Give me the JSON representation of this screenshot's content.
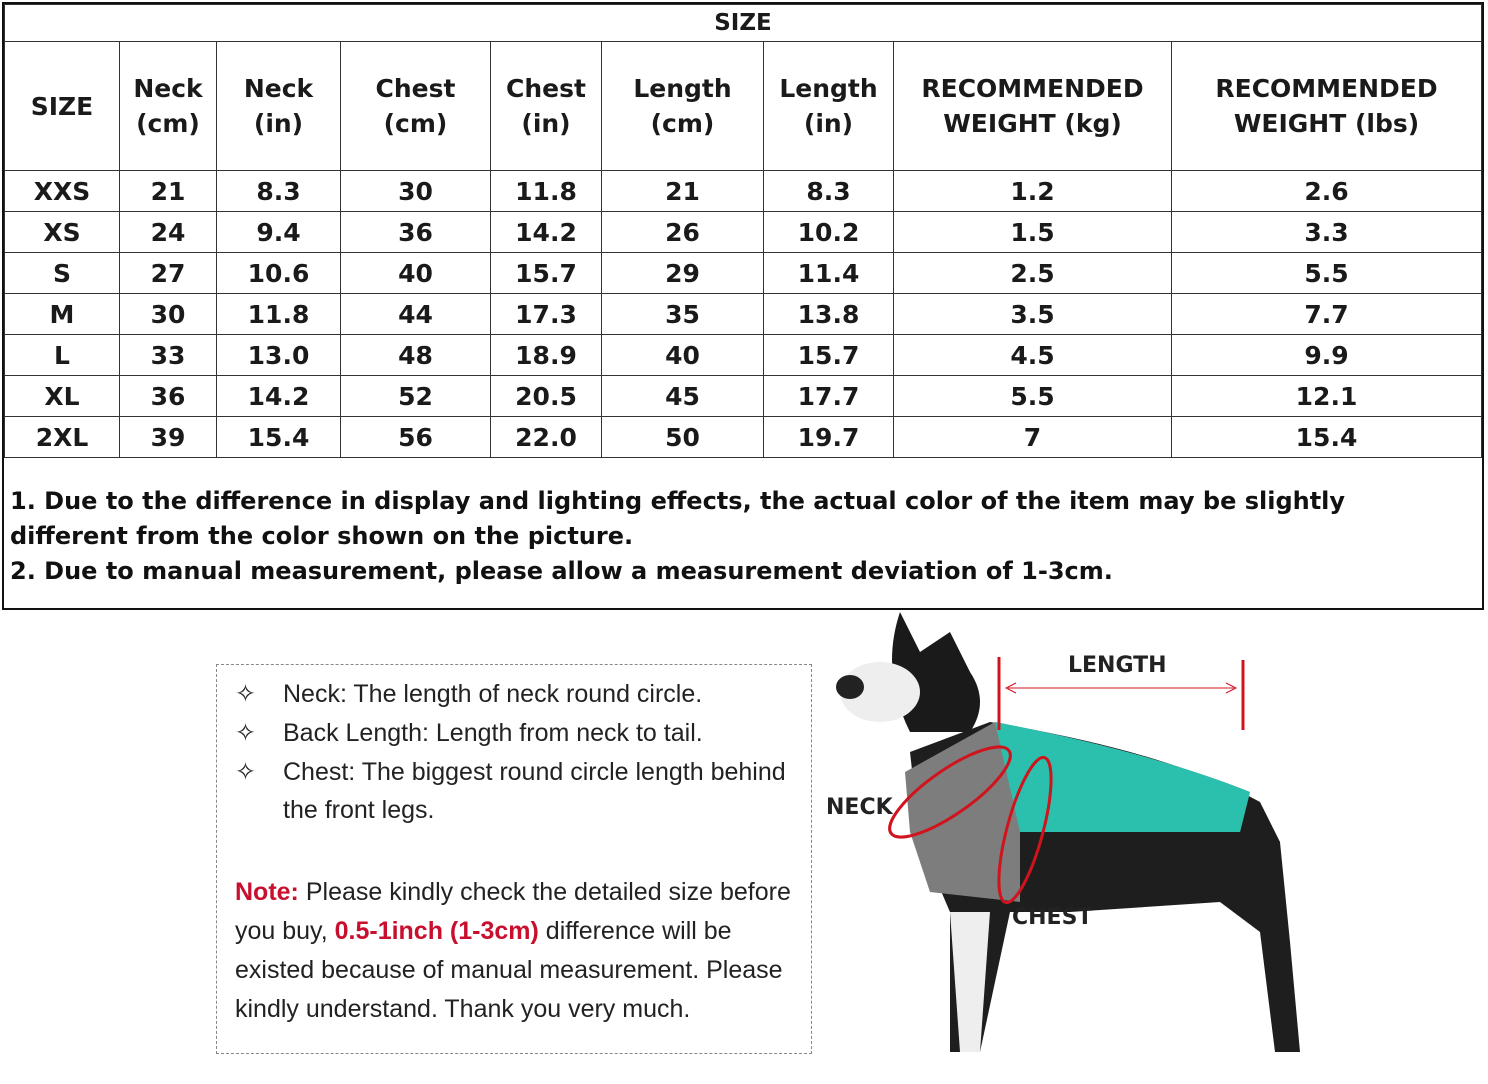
{
  "table": {
    "title": "SIZE",
    "headers": [
      [
        "SIZE",
        ""
      ],
      [
        "Neck",
        "(cm)"
      ],
      [
        "Neck",
        "(in)"
      ],
      [
        "Chest",
        "(cm)"
      ],
      [
        "Chest",
        "(in)"
      ],
      [
        "Length",
        "(cm)"
      ],
      [
        "Length",
        "(in)"
      ],
      [
        "RECOMMENDED",
        "WEIGHT (kg)"
      ],
      [
        "RECOMMENDED",
        "WEIGHT (lbs)"
      ]
    ],
    "rows": [
      [
        "XXS",
        "21",
        "8.3",
        "30",
        "11.8",
        "21",
        "8.3",
        "1.2",
        "2.6"
      ],
      [
        "XS",
        "24",
        "9.4",
        "36",
        "14.2",
        "26",
        "10.2",
        "1.5",
        "3.3"
      ],
      [
        "S",
        "27",
        "10.6",
        "40",
        "15.7",
        "29",
        "11.4",
        "2.5",
        "5.5"
      ],
      [
        "M",
        "30",
        "11.8",
        "44",
        "17.3",
        "35",
        "13.8",
        "3.5",
        "7.7"
      ],
      [
        "L",
        "33",
        "13.0",
        "48",
        "18.9",
        "40",
        "15.7",
        "4.5",
        "9.9"
      ],
      [
        "XL",
        "36",
        "14.2",
        "52",
        "20.5",
        "45",
        "17.7",
        "5.5",
        "12.1"
      ],
      [
        "2XL",
        "39",
        "15.4",
        "56",
        "22.0",
        "50",
        "19.7",
        "7",
        "15.4"
      ]
    ],
    "notes": [
      "1. Due to the difference in display and lighting effects, the actual color of the item may be slightly different from the color shown on the picture.",
      "2. Due to manual measurement, please allow a measurement deviation of 1-3cm."
    ]
  },
  "guide": {
    "bullets": [
      "Neck: The length of neck round circle.",
      "Back Length: Length from neck to tail.",
      "Chest: The biggest round circle length behind",
      "the front legs."
    ],
    "note_label": "Note:",
    "note_1": " Please kindly check the detailed size before you buy, ",
    "note_highlight": "0.5-1inch (1-3cm)",
    "note_2": " difference will be existed because of manual measurement. Please kindly understand. Thank you very much.",
    "bullet_icon": "four-point-star-outline",
    "accent_color": "#c8102e"
  },
  "diagram": {
    "length_label": "LENGTH",
    "neck_label": "NECK",
    "chest_label": "CHEST",
    "coat_color": "#2bbfae",
    "coat_grey": "#7d7d7d"
  }
}
